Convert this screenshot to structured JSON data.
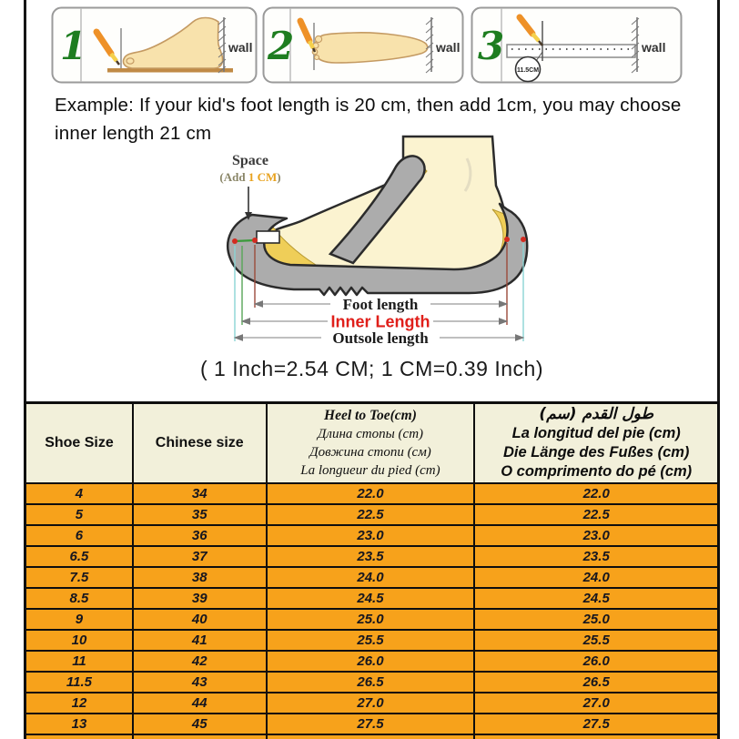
{
  "steps": {
    "panels": [
      {
        "number": "1",
        "wall_label": "wall"
      },
      {
        "number": "2",
        "wall_label": "wall"
      },
      {
        "number": "3",
        "wall_label": "wall",
        "ruler_mark": "11.5CM"
      }
    ]
  },
  "example_note": "Example: If your kid's foot length is 20 cm, then add 1cm, you may choose inner length 21 cm",
  "measure_diagram": {
    "space_label": "Space",
    "add_prefix": "(Add ",
    "add_value": "1 CM",
    "add_suffix": ")",
    "foot_length_label": "Foot length",
    "inner_length_label": "Inner Length",
    "outsole_length_label": "Outsole length"
  },
  "conversion_note": "( 1 Inch=2.54 CM; 1 CM=0.39 Inch)",
  "chart_data": {
    "type": "table",
    "title": "Kids shoe size chart",
    "columns": [
      {
        "lines": [
          "Shoe Size"
        ]
      },
      {
        "lines": [
          "Chinese size"
        ]
      },
      {
        "lines": [
          "Heel to Toe(cm)",
          "Длина стопы (cm)",
          "Довжина стопи (см)",
          "La longueur du pied (cm)"
        ]
      },
      {
        "lines": [
          "طول القدم (سم)",
          "La longitud del pie (cm)",
          "Die Länge des Fußes (cm)",
          "O comprimento do pé (cm)"
        ]
      }
    ],
    "rows": [
      [
        "4",
        "34",
        "22.0",
        "22.0"
      ],
      [
        "5",
        "35",
        "22.5",
        "22.5"
      ],
      [
        "6",
        "36",
        "23.0",
        "23.0"
      ],
      [
        "6.5",
        "37",
        "23.5",
        "23.5"
      ],
      [
        "7.5",
        "38",
        "24.0",
        "24.0"
      ],
      [
        "8.5",
        "39",
        "24.5",
        "24.5"
      ],
      [
        "9",
        "40",
        "25.0",
        "25.0"
      ],
      [
        "10",
        "41",
        "25.5",
        "25.5"
      ],
      [
        "11",
        "42",
        "26.0",
        "26.0"
      ],
      [
        "11.5",
        "43",
        "26.5",
        "26.5"
      ],
      [
        "12",
        "44",
        "27.0",
        "27.0"
      ],
      [
        "13",
        "45",
        "27.5",
        "27.5"
      ]
    ]
  },
  "colors": {
    "row_orange": "#F7A21B",
    "header_cream": "#F2F0DA",
    "inner_length_red": "#E01F1A",
    "step_number_green": "#1E7D20",
    "pencil_orange": "#EE9128",
    "sole_gray": "#ACACAC",
    "insole_yellow": "#EFCE58",
    "foot_cream": "#FBF3D0"
  }
}
